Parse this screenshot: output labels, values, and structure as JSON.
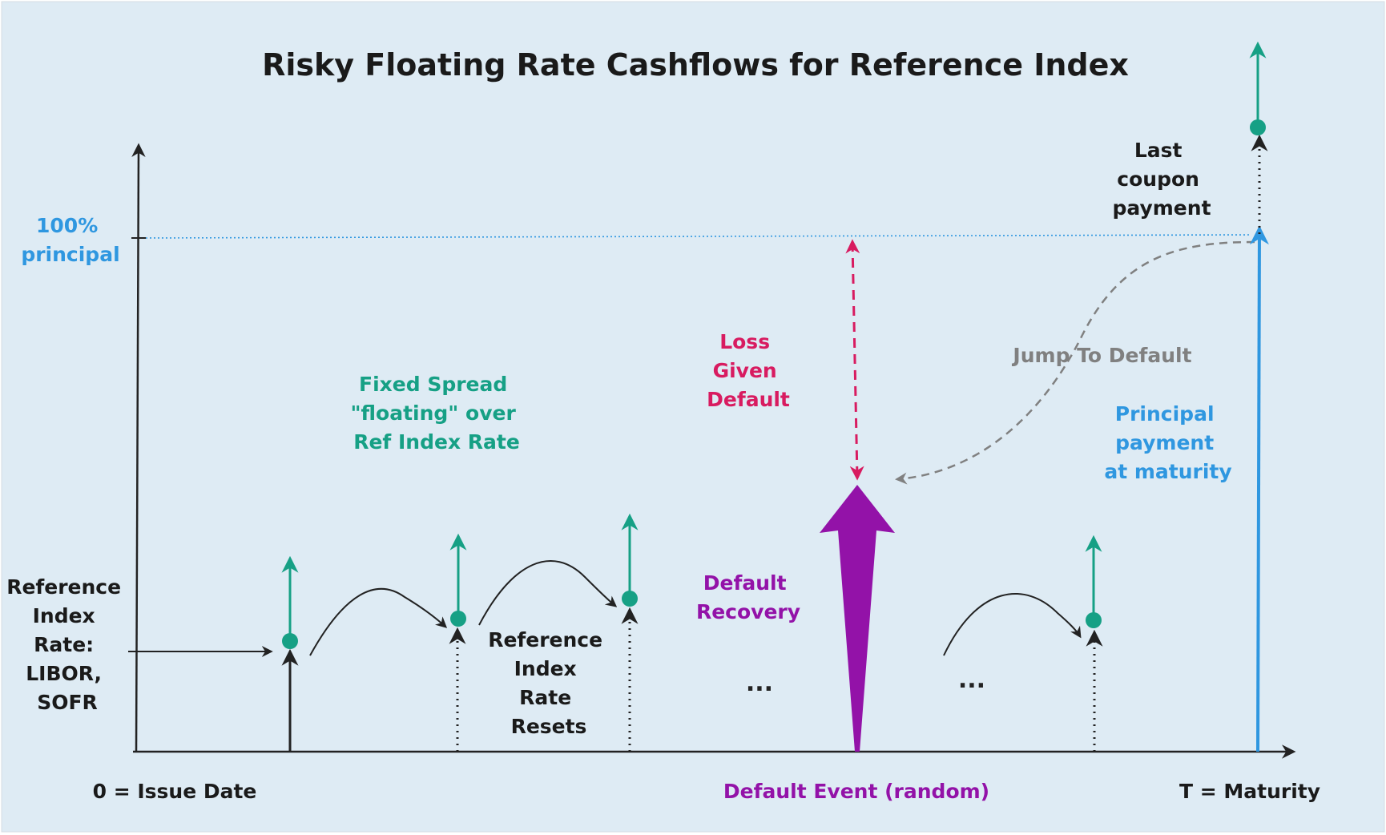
{
  "title": "Risky Floating Rate Cashflows for Reference Index",
  "principal_label": [
    "100%",
    "principal"
  ],
  "reference_rate_label": [
    "Reference",
    "Index",
    "Rate:",
    "LIBOR,",
    "SOFR"
  ],
  "fixed_spread_label": [
    "Fixed Spread",
    "\"floating\" over",
    "Ref Index Rate"
  ],
  "rate_resets_label": [
    "Reference",
    "Index",
    "Rate",
    "Resets"
  ],
  "loss_given_default_label": [
    "Loss",
    "Given",
    "Default"
  ],
  "default_recovery_label": [
    "Default",
    "Recovery"
  ],
  "jump_to_default_label": "Jump To Default",
  "principal_payment_label": [
    "Principal",
    "payment",
    "at maturity"
  ],
  "last_coupon_label": [
    "Last",
    "coupon",
    "payment"
  ],
  "ellipsis": "...",
  "axis": {
    "origin_label": "0 = Issue Date",
    "default_event_label": "Default Event (random)",
    "maturity_label": "T = Maturity"
  },
  "colors": {
    "background": "#deebf4",
    "axis": "#222222",
    "coupon": "#16a085",
    "principal": "#2f97e0",
    "loss": "#d81b60",
    "recovery": "#9312a8",
    "jump": "#808080"
  }
}
